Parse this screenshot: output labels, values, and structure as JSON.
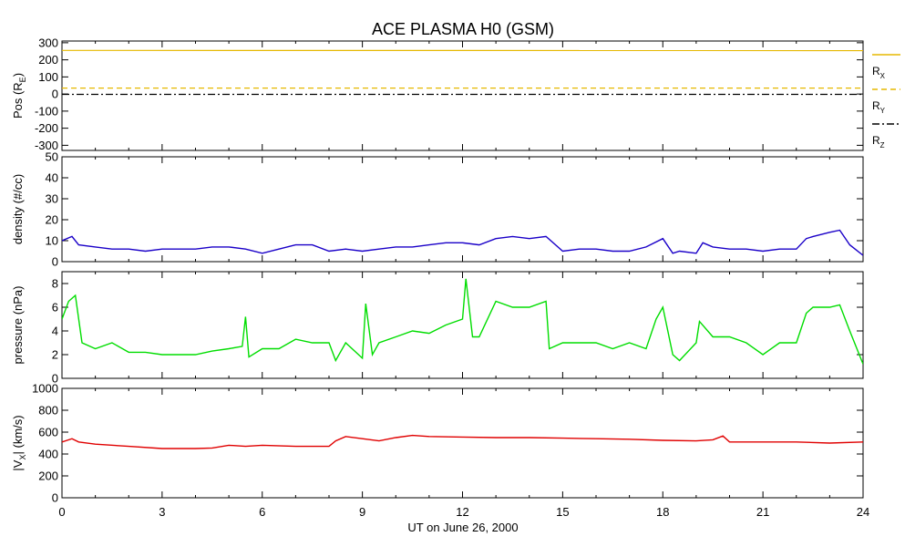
{
  "title": "ACE PLASMA H0 (GSM)",
  "xlabel": "UT on June 26, 2000",
  "x_ticks": [
    "0",
    "3",
    "6",
    "9",
    "12",
    "15",
    "18",
    "21",
    "24"
  ],
  "colors": {
    "rx": "#e6b800",
    "ry": "#e6b800",
    "rz": "#000000",
    "density": "#1a00c8",
    "pressure": "#00dd00",
    "vx": "#e00000",
    "axes": "#000000"
  },
  "legend": {
    "rx": "R",
    "rx_sub": "X",
    "ry": "R",
    "ry_sub": "Y",
    "rz": "R",
    "rz_sub": "Z"
  },
  "chart_data": [
    {
      "type": "line",
      "ylabel": "Pos (R",
      "ylabel_sub": "E",
      "ylabel_end": ")",
      "ylim": [
        -330,
        310
      ],
      "y_ticks": [
        "300",
        "200",
        "100",
        "0",
        "-100",
        "-200",
        "-300"
      ],
      "y_tick_values": [
        300,
        200,
        100,
        0,
        -100,
        -200,
        -300
      ],
      "x": [
        0,
        24
      ],
      "series": [
        {
          "name": "R_X",
          "values": [
            255,
            254
          ]
        },
        {
          "name": "R_Y",
          "values": [
            35,
            35
          ]
        },
        {
          "name": "R_Z",
          "values": [
            -2,
            -2
          ]
        }
      ]
    },
    {
      "type": "line",
      "ylabel": "density (#/cc)",
      "ylim": [
        0,
        50
      ],
      "y_ticks": [
        "50",
        "40",
        "30",
        "20",
        "10",
        "0"
      ],
      "y_tick_values": [
        50,
        40,
        30,
        20,
        10,
        0
      ],
      "x": [
        0,
        0.3,
        0.5,
        1,
        1.5,
        2,
        2.5,
        3,
        3.5,
        4,
        4.5,
        5,
        5.5,
        6,
        6.5,
        7,
        7.5,
        8,
        8.5,
        9,
        9.5,
        10,
        10.5,
        11,
        11.5,
        12,
        12.5,
        13,
        13.5,
        14,
        14.5,
        15,
        15.5,
        16,
        16.5,
        17,
        17.5,
        18,
        18.3,
        18.5,
        19,
        19.2,
        19.5,
        20,
        20.5,
        21,
        21.5,
        22,
        22.3,
        22.5,
        23,
        23.3,
        23.6,
        24
      ],
      "values": [
        10,
        12,
        8,
        7,
        6,
        6,
        5,
        6,
        6,
        6,
        7,
        7,
        6,
        4,
        6,
        8,
        8,
        5,
        6,
        5,
        6,
        7,
        7,
        8,
        9,
        9,
        8,
        11,
        12,
        11,
        12,
        5,
        6,
        6,
        5,
        5,
        7,
        11,
        4,
        5,
        4,
        9,
        7,
        6,
        6,
        5,
        6,
        6,
        11,
        12,
        14,
        15,
        8,
        3
      ]
    },
    {
      "type": "line",
      "ylabel": "pressure (nPa)",
      "ylim": [
        0,
        9
      ],
      "y_ticks": [
        "8",
        "6",
        "4",
        "2",
        "0"
      ],
      "y_tick_values": [
        8,
        6,
        4,
        2,
        0
      ],
      "x": [
        0,
        0.2,
        0.4,
        0.6,
        1,
        1.5,
        2,
        2.5,
        3,
        3.5,
        4,
        4.5,
        5,
        5.4,
        5.5,
        5.6,
        6,
        6.5,
        7,
        7.5,
        8,
        8.2,
        8.5,
        9,
        9.1,
        9.3,
        9.5,
        10,
        10.5,
        11,
        11.5,
        12,
        12.1,
        12.3,
        12.5,
        13,
        13.5,
        14,
        14.5,
        14.6,
        15,
        15.5,
        16,
        16.5,
        17,
        17.5,
        17.8,
        18,
        18.3,
        18.5,
        19,
        19.1,
        19.5,
        20,
        20.5,
        21,
        21.5,
        22,
        22.3,
        22.5,
        23,
        23.3,
        23.6,
        24
      ],
      "values": [
        5,
        6.5,
        7,
        3,
        2.5,
        3,
        2.2,
        2.2,
        2,
        2,
        2,
        2.3,
        2.5,
        2.7,
        5.2,
        1.8,
        2.5,
        2.5,
        3.3,
        3,
        3,
        1.5,
        3,
        1.7,
        6.3,
        2,
        3,
        3.5,
        4,
        3.8,
        4.5,
        5,
        8.4,
        3.5,
        3.5,
        6.5,
        6,
        6,
        6.5,
        2.5,
        3,
        3,
        3,
        2.5,
        3,
        2.5,
        5,
        6,
        2,
        1.5,
        3,
        4.8,
        3.5,
        3.5,
        3,
        2,
        3,
        3,
        5.5,
        6,
        6,
        6.2,
        4,
        1.2
      ]
    },
    {
      "type": "line",
      "ylabel": "|V",
      "ylabel_sub": "X",
      "ylabel_end": "| (km/s)",
      "ylim": [
        0,
        1000
      ],
      "y_ticks": [
        "1000",
        "800",
        "600",
        "400",
        "200",
        "0"
      ],
      "y_tick_values": [
        1000,
        800,
        600,
        400,
        200,
        0
      ],
      "x": [
        0,
        0.3,
        0.5,
        1,
        2,
        3,
        4,
        4.5,
        5,
        5.5,
        6,
        7,
        8,
        8.2,
        8.5,
        9,
        9.5,
        10,
        10.5,
        11,
        12,
        13,
        14,
        15,
        16,
        17,
        18,
        19,
        19.5,
        19.8,
        20,
        20.5,
        21,
        22,
        23,
        24
      ],
      "values": [
        510,
        540,
        510,
        490,
        470,
        450,
        450,
        455,
        480,
        470,
        480,
        470,
        470,
        520,
        560,
        540,
        520,
        550,
        570,
        560,
        555,
        550,
        550,
        545,
        540,
        535,
        525,
        520,
        530,
        565,
        510,
        510,
        510,
        510,
        500,
        510
      ]
    }
  ]
}
